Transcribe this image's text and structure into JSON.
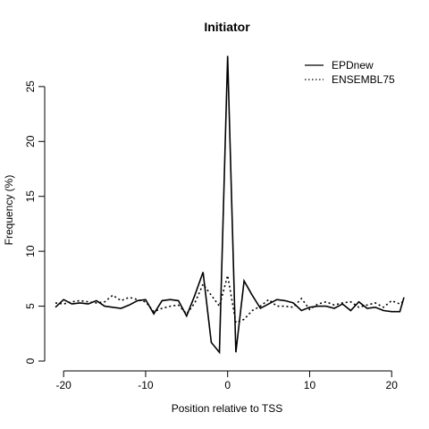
{
  "chart_data": {
    "type": "line",
    "title": "Initiator",
    "xlabel": "Position relative to TSS",
    "ylabel": "Frequency (%)",
    "xlim": [
      -21,
      21.5
    ],
    "ylim": [
      0,
      28
    ],
    "xticks": [
      -20,
      -10,
      0,
      10,
      20
    ],
    "yticks": [
      0,
      5,
      10,
      15,
      20,
      25
    ],
    "grid": false,
    "legend_position": "top-right",
    "x": [
      -21,
      -20,
      -19,
      -18,
      -17,
      -16,
      -15,
      -14,
      -13,
      -12,
      -11,
      -10,
      -9,
      -8,
      -7,
      -6,
      -5,
      -4,
      -3,
      -2,
      -1,
      0,
      1,
      2,
      3,
      4,
      5,
      6,
      7,
      8,
      9,
      10,
      11,
      12,
      13,
      14,
      15,
      16,
      17,
      18,
      19,
      20,
      21,
      21.5
    ],
    "series": [
      {
        "name": "EPDnew",
        "style": "solid",
        "values": [
          4.9,
          5.6,
          5.2,
          5.3,
          5.2,
          5.5,
          5.0,
          4.9,
          4.8,
          5.1,
          5.5,
          5.6,
          4.3,
          5.5,
          5.6,
          5.5,
          4.1,
          6.0,
          8.1,
          1.7,
          0.8,
          27.8,
          0.8,
          7.3,
          6.0,
          4.8,
          5.2,
          5.6,
          5.5,
          5.3,
          4.6,
          4.9,
          5.0,
          5.0,
          4.8,
          5.2,
          4.6,
          5.4,
          4.8,
          4.9,
          4.6,
          4.5,
          4.5,
          5.8
        ]
      },
      {
        "name": "ENSEMBL75",
        "style": "dotted",
        "values": [
          5.3,
          5.2,
          5.4,
          5.5,
          5.4,
          5.3,
          5.4,
          6.0,
          5.5,
          5.8,
          5.6,
          5.4,
          4.5,
          4.8,
          5.0,
          5.1,
          4.3,
          5.3,
          7.0,
          6.0,
          5.0,
          7.8,
          3.5,
          3.8,
          4.6,
          5.0,
          5.6,
          5.0,
          5.0,
          4.9,
          5.7,
          4.7,
          5.2,
          5.4,
          5.1,
          5.3,
          5.4,
          4.9,
          5.1,
          5.3,
          4.9,
          5.5,
          5.2,
          5.5
        ]
      }
    ]
  }
}
